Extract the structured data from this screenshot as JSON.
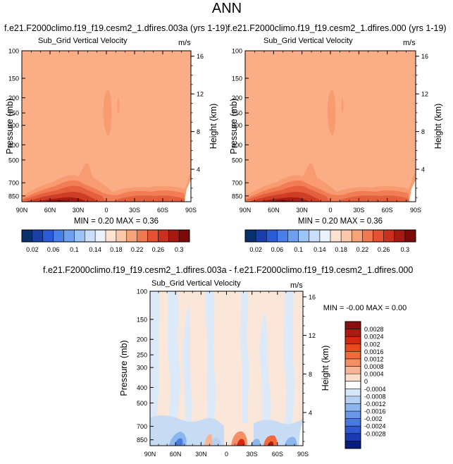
{
  "page_title": "ANN",
  "chart_data": [
    {
      "type": "heatmap",
      "title": "f.e21.F2000climo.f19_f19.cesm2_1.dfires.003a (yrs 1-19)",
      "subtitle_left": "Sub_Grid Vertical Velocity",
      "subtitle_right": "m/s",
      "ylabel": "Pressure (mb)",
      "ylabel_right": "Height (km)",
      "xticks": [
        "90N",
        "60N",
        "30N",
        "0",
        "30S",
        "60S",
        "90S"
      ],
      "yticks": [
        "100",
        "150",
        "200",
        "250",
        "300",
        "400",
        "500",
        "700",
        "850"
      ],
      "yticks_right": [
        "16",
        "12",
        "8",
        "4"
      ],
      "xlim": [
        90,
        -90
      ],
      "ylim": [
        100,
        925
      ],
      "minmax_text": "MIN =  0.20   MAX =  0.36",
      "background_value": 0.2,
      "colorbar": {
        "labels": [
          "0.02",
          "0.06",
          "0.1",
          "0.14",
          "0.18",
          "0.22",
          "0.26",
          "0.3"
        ],
        "colors": [
          "#08306b",
          "#1a3fa8",
          "#2b5cd6",
          "#4a7fe8",
          "#6fa0f0",
          "#9cc4f7",
          "#c8def9",
          "#ebf2fb",
          "#fde3d0",
          "#fbc8a8",
          "#f6a47c",
          "#ef7a52",
          "#e25233",
          "#c9301f",
          "#a51a13",
          "#7b0a09"
        ]
      }
    },
    {
      "type": "heatmap",
      "title": "f.e21.F2000climo.f19_f19.cesm2_1.dfires.000 (yrs 1-19)",
      "subtitle_left": "Sub_Grid Vertical Velocity",
      "subtitle_right": "m/s",
      "ylabel": "Pressure (mb)",
      "ylabel_right": "Height (km)",
      "xticks": [
        "90N",
        "60N",
        "30N",
        "0",
        "30S",
        "60S",
        "90S"
      ],
      "yticks": [
        "100",
        "150",
        "200",
        "250",
        "300",
        "400",
        "500",
        "700",
        "850"
      ],
      "yticks_right": [
        "16",
        "12",
        "8",
        "4"
      ],
      "xlim": [
        90,
        -90
      ],
      "ylim": [
        100,
        925
      ],
      "minmax_text": "MIN =  0.20   MAX =  0.36",
      "background_value": 0.2,
      "colorbar": {
        "labels": [
          "0.02",
          "0.06",
          "0.1",
          "0.14",
          "0.18",
          "0.22",
          "0.26",
          "0.3"
        ],
        "colors": [
          "#08306b",
          "#1a3fa8",
          "#2b5cd6",
          "#4a7fe8",
          "#6fa0f0",
          "#9cc4f7",
          "#c8def9",
          "#ebf2fb",
          "#fde3d0",
          "#fbc8a8",
          "#f6a47c",
          "#ef7a52",
          "#e25233",
          "#c9301f",
          "#a51a13",
          "#7b0a09"
        ]
      }
    },
    {
      "type": "heatmap",
      "title": "f.e21.F2000climo.f19_f19.cesm2_1.dfires.003a - f.e21.F2000climo.f19_f19.cesm2_1.dfires.000",
      "subtitle_left": "Sub_Grid Vertical Velocity",
      "subtitle_right": "m/s",
      "ylabel": "Pressure (mb)",
      "ylabel_right": "Height (km)",
      "xticks": [
        "90N",
        "60N",
        "30N",
        "0",
        "30S",
        "60S",
        "90S"
      ],
      "yticks": [
        "100",
        "150",
        "200",
        "250",
        "300",
        "400",
        "500",
        "700",
        "850"
      ],
      "yticks_right": [
        "16",
        "12",
        "8",
        "4"
      ],
      "xlim": [
        90,
        -90
      ],
      "ylim": [
        100,
        925
      ],
      "minmax_text": "MIN = -0.00   MAX =  0.00",
      "colorbar": {
        "labels": [
          "0.0028",
          "0.0024",
          "0.002",
          "0.0016",
          "0.0012",
          "0.0008",
          "0.0004",
          "0",
          "-0.0004",
          "-0.0008",
          "-0.0012",
          "-0.0016",
          "-0.002",
          "-0.0024",
          "-0.0028"
        ],
        "colors": [
          "#8b0f0f",
          "#b2180f",
          "#d42a14",
          "#ea4b1e",
          "#f26a3a",
          "#f58e63",
          "#f7b597",
          "#f9dccb",
          "#ffffff",
          "#d8e7f7",
          "#b4d1f3",
          "#8cb6ee",
          "#6a98e8",
          "#4a7ae0",
          "#2f58d2",
          "#1a3bb2",
          "#081d7a"
        ]
      }
    }
  ]
}
